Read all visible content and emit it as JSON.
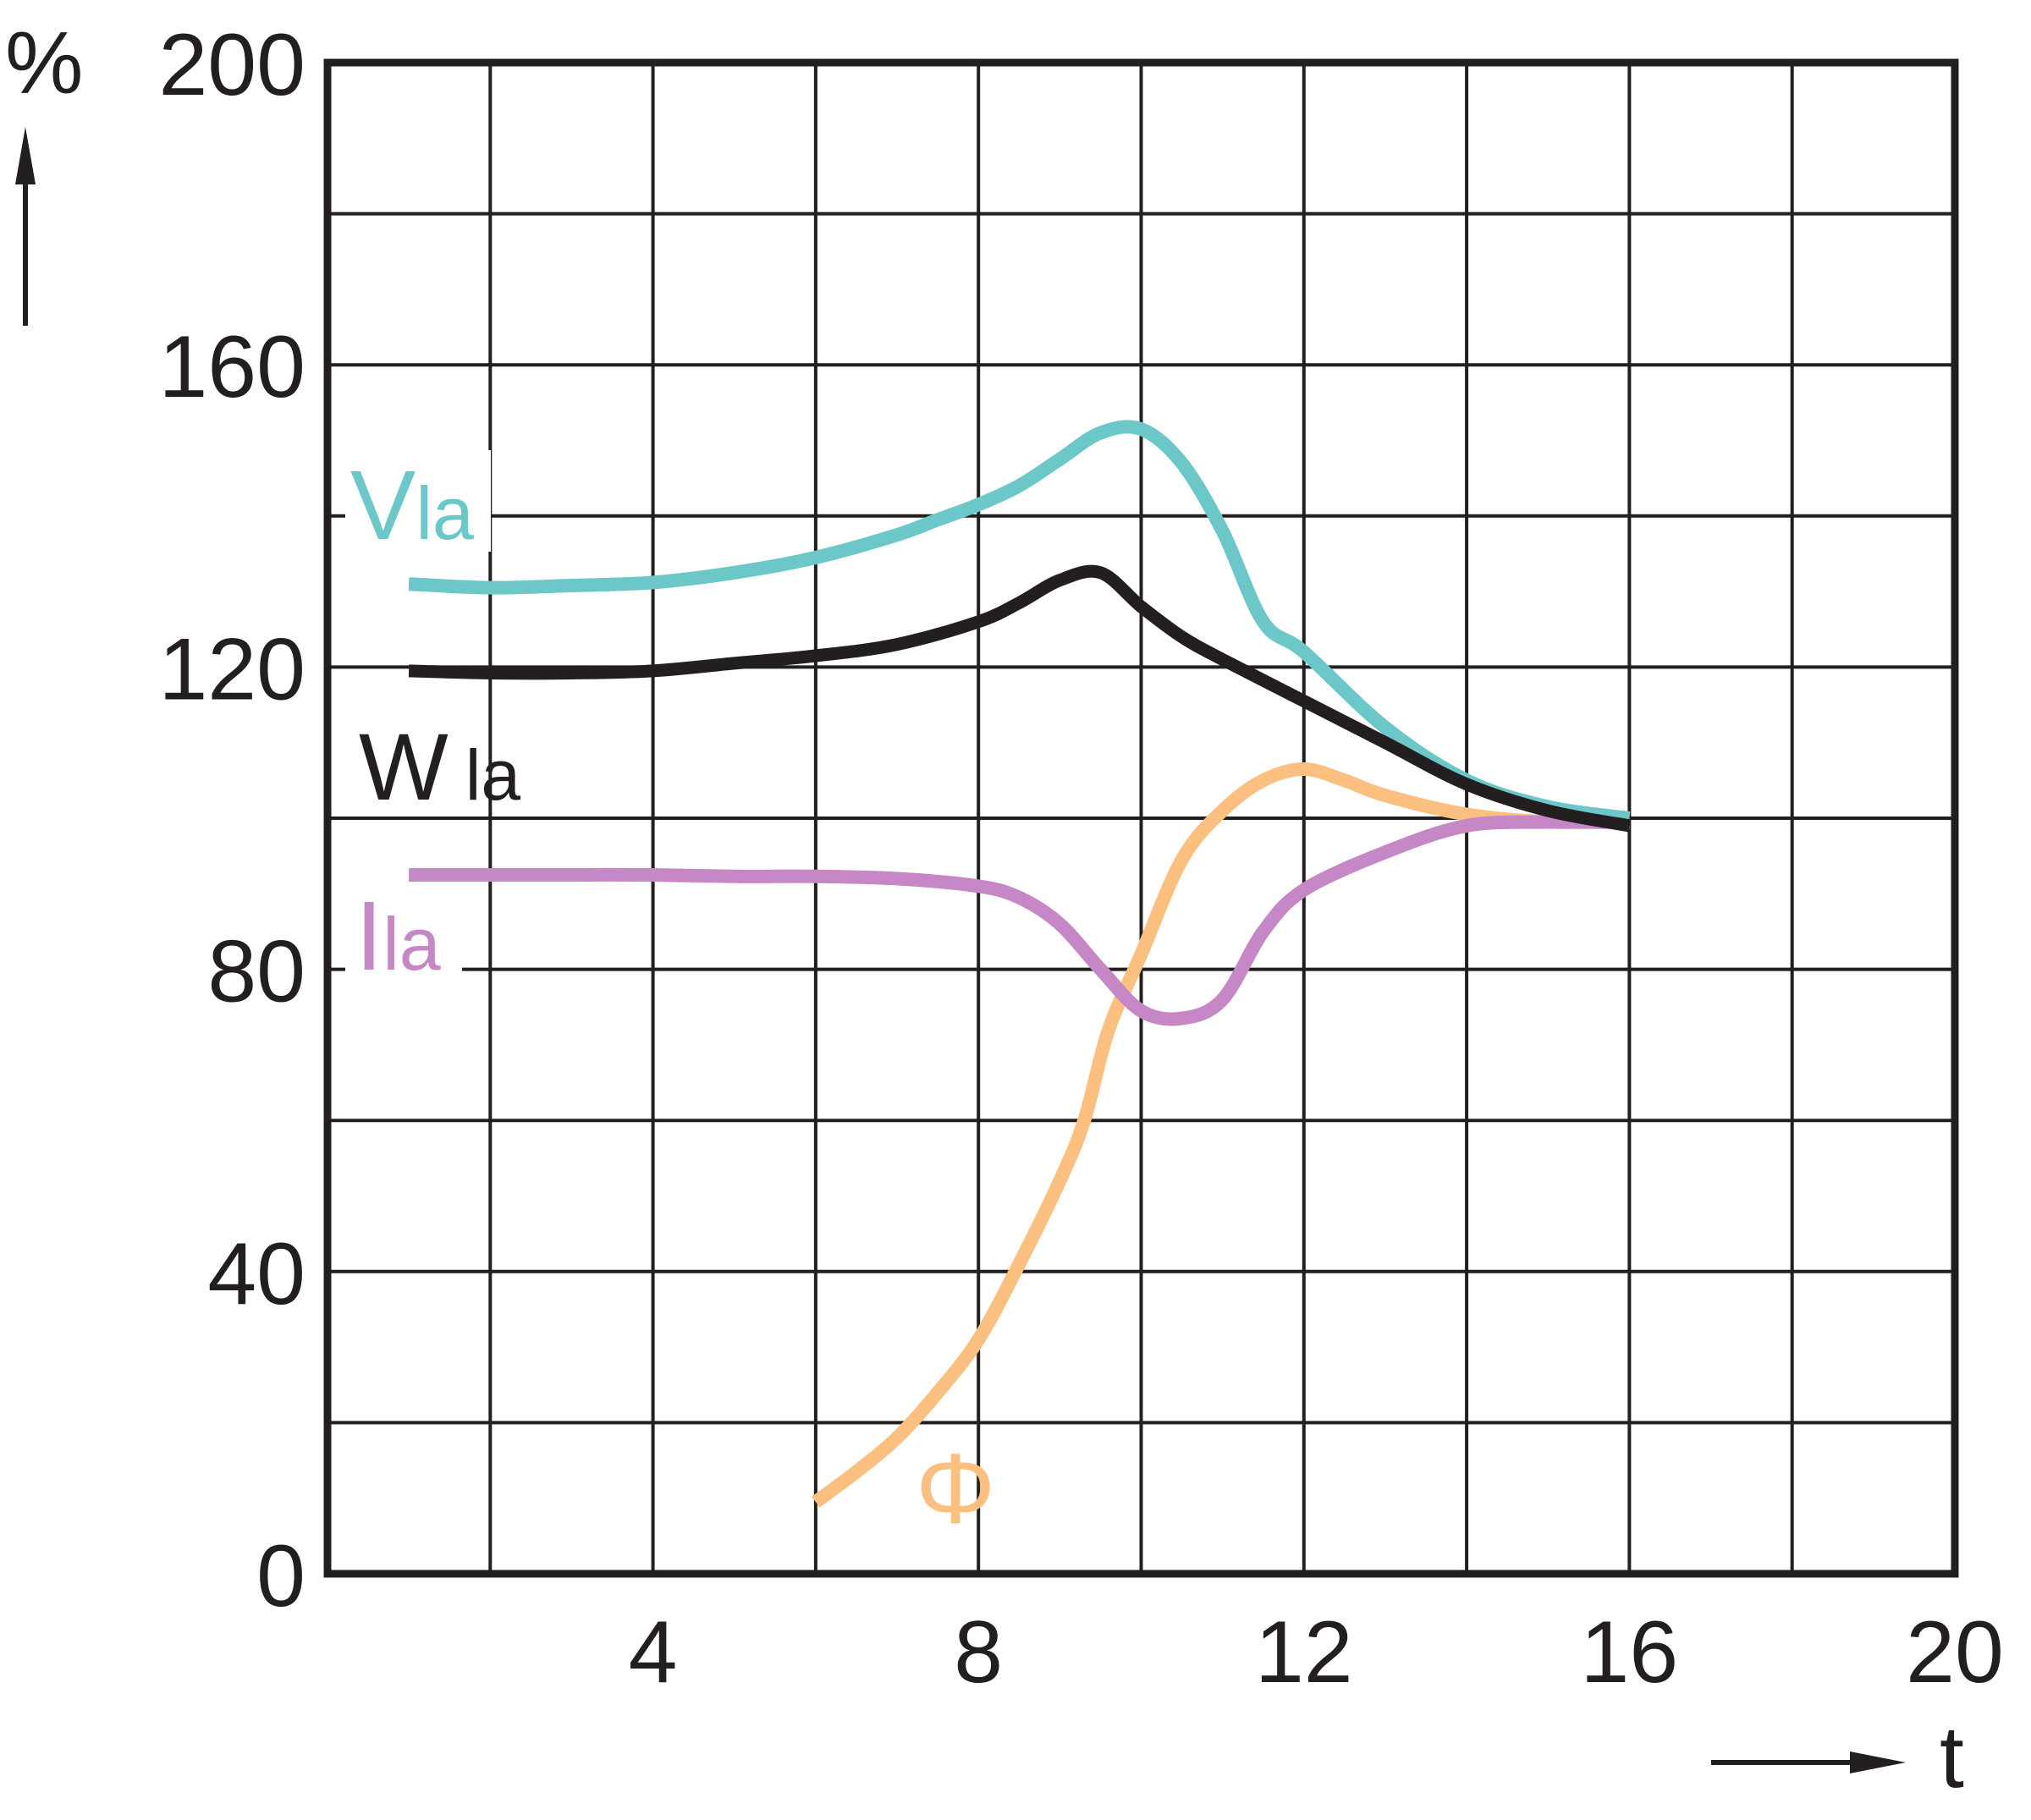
{
  "chart_data": {
    "type": "line",
    "title": "",
    "xlabel": "t",
    "ylabel": "%",
    "xlim": [
      0,
      20
    ],
    "ylim": [
      0,
      200
    ],
    "x_ticks": [
      4,
      8,
      12,
      16,
      20
    ],
    "x_tick_labels": [
      "4",
      "8",
      "12",
      "16",
      "20"
    ],
    "y_ticks": [
      0,
      40,
      80,
      120,
      160,
      200
    ],
    "y_tick_labels": [
      "0",
      "40",
      "80",
      "120",
      "160",
      "200"
    ],
    "grid": true,
    "grid_x_step": 2,
    "grid_y_step": 20,
    "legend": "none (inline series labels)",
    "series": [
      {
        "name": "Vla",
        "label_main": "V",
        "label_sub": "la",
        "color": "#6cc7c9",
        "x": [
          1,
          2,
          3,
          4,
          5,
          6,
          7,
          7.5,
          8,
          8.5,
          9,
          9.5,
          10,
          10.5,
          11,
          11.5,
          12,
          13,
          14,
          15,
          16
        ],
        "y": [
          131,
          130.5,
          130.8,
          131.2,
          132.5,
          134.5,
          137.5,
          139.5,
          141.5,
          144,
          147.5,
          151,
          151.5,
          147,
          138,
          126,
          122,
          112,
          105,
          101.5,
          100
        ]
      },
      {
        "name": "Wla",
        "label_main": "W",
        "label_sub": "la",
        "color": "#231f20",
        "x": [
          1,
          2,
          3,
          4,
          5,
          6,
          7,
          8,
          8.5,
          9,
          9.5,
          10,
          10.5,
          11,
          12,
          13,
          14,
          15,
          16
        ],
        "y": [
          119.5,
          119.2,
          119.2,
          119.5,
          120.5,
          121.5,
          123,
          126,
          128.5,
          131.5,
          132.5,
          128,
          124,
          121,
          115.5,
          110,
          104.5,
          101,
          99
        ]
      },
      {
        "name": "Ila",
        "label_main": "I",
        "label_sub": "la",
        "color": "#c687c6",
        "x": [
          1,
          2,
          3,
          4,
          5,
          6,
          7,
          8,
          8.5,
          9,
          9.5,
          10,
          10.5,
          11,
          11.5,
          12,
          13,
          14,
          15,
          16
        ],
        "y": [
          92.5,
          92.5,
          92.5,
          92.5,
          92.3,
          92.3,
          92,
          91,
          89.5,
          86,
          80,
          74.5,
          73.5,
          76,
          85,
          90.5,
          95.5,
          99,
          99.5,
          99.5
        ]
      },
      {
        "name": "Φ",
        "label_main": "Φ",
        "label_sub": "",
        "color": "#fbbf7f",
        "x": [
          6,
          6.5,
          7,
          7.5,
          8,
          8.5,
          9,
          9.3,
          9.6,
          10,
          10.5,
          11,
          11.5,
          12,
          12.5,
          13,
          14,
          15,
          16
        ],
        "y": [
          9.5,
          13.5,
          18,
          24,
          31,
          41,
          52,
          60,
          72,
          82,
          94.5,
          101,
          105,
          106.5,
          105,
          103,
          100.5,
          99.5,
          99.5
        ]
      }
    ]
  }
}
